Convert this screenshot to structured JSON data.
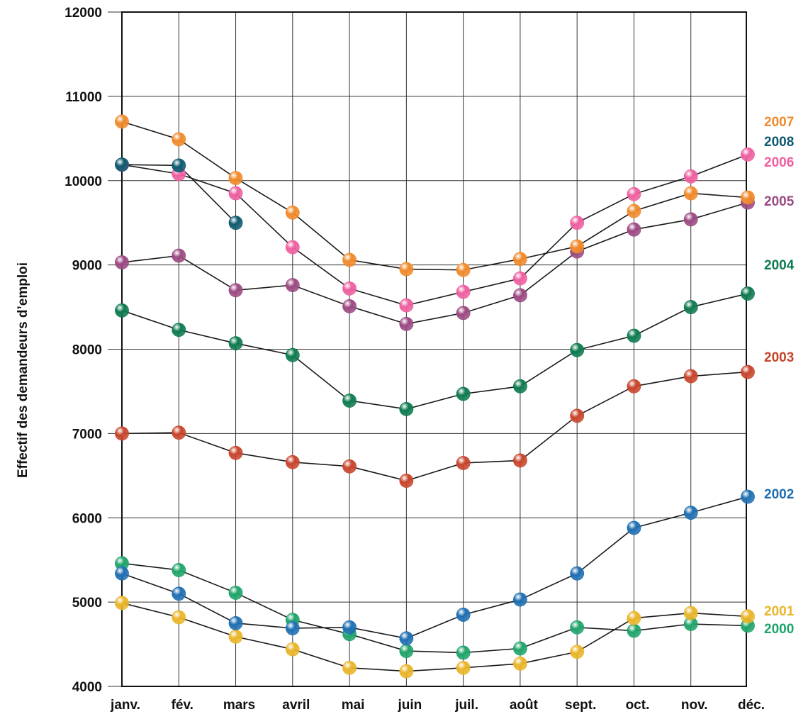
{
  "chart_data": {
    "type": "line",
    "title": "",
    "xlabel": "",
    "ylabel": "Effectif des demandeurs d’emploi",
    "ylim": [
      4000,
      12000
    ],
    "yticks": [
      4000,
      5000,
      6000,
      7000,
      8000,
      9000,
      10000,
      11000,
      12000
    ],
    "categories": [
      "janv.",
      "fév.",
      "mars",
      "avril",
      "mai",
      "juin",
      "juil.",
      "août",
      "sept.",
      "oct.",
      "nov.",
      "déc."
    ],
    "grid": true,
    "legend": "right, labels next to series ends",
    "series": [
      {
        "name": "2007",
        "color": "#F08A2C",
        "values": [
          10700,
          10490,
          10030,
          9620,
          9060,
          8950,
          8940,
          9070,
          9220,
          9640,
          9850,
          9800
        ]
      },
      {
        "name": "2008",
        "color": "#0E5A70",
        "values": [
          10190,
          10180,
          9500,
          null,
          null,
          null,
          null,
          null,
          null,
          null,
          null,
          null
        ]
      },
      {
        "name": "2006",
        "color": "#EE5FA0",
        "values": [
          10190,
          10080,
          9850,
          9210,
          8720,
          8520,
          8680,
          8840,
          9500,
          9840,
          10050,
          10310
        ]
      },
      {
        "name": "2005",
        "color": "#9B4A82",
        "values": [
          9030,
          9110,
          8700,
          8760,
          8510,
          8300,
          8430,
          8640,
          9160,
          9420,
          9540,
          9740
        ]
      },
      {
        "name": "2004",
        "color": "#0E7A4F",
        "values": [
          8460,
          8230,
          8070,
          7930,
          7390,
          7290,
          7470,
          7560,
          7990,
          8160,
          8500,
          8660
        ]
      },
      {
        "name": "2003",
        "color": "#C8452C",
        "values": [
          7000,
          7010,
          6770,
          6660,
          6610,
          6440,
          6650,
          6680,
          7210,
          7560,
          7680,
          7730
        ]
      },
      {
        "name": "2002",
        "color": "#1F6FB2",
        "values": [
          5340,
          5100,
          4750,
          4690,
          4700,
          4570,
          4850,
          5030,
          5340,
          5880,
          6060,
          6250
        ]
      },
      {
        "name": "2001",
        "color": "#E9B52A",
        "values": [
          4990,
          4820,
          4590,
          4440,
          4220,
          4180,
          4220,
          4270,
          4410,
          4810,
          4870,
          4830
        ]
      },
      {
        "name": "2000",
        "color": "#1FA46A",
        "values": [
          5460,
          5380,
          5110,
          4790,
          4620,
          4420,
          4400,
          4450,
          4700,
          4660,
          4740,
          4720
        ]
      }
    ]
  }
}
